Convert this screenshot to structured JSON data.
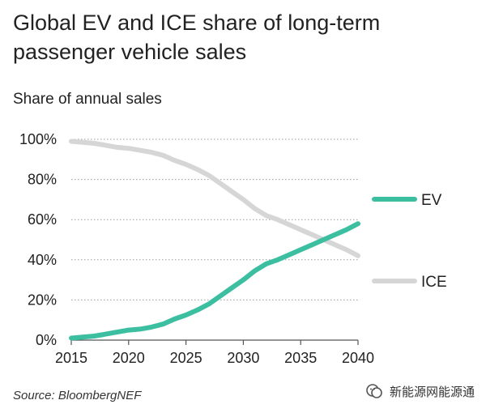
{
  "chart_data": {
    "type": "line",
    "title": "Global EV and ICE share of long-term passenger vehicle sales",
    "subtitle": "Share of annual sales",
    "xlabel": "",
    "ylabel": "Share of annual sales",
    "xlim": [
      2015,
      2040
    ],
    "ylim": [
      0,
      100
    ],
    "x_ticks": [
      "2015",
      "2020",
      "2025",
      "2030",
      "2035",
      "2040"
    ],
    "y_ticks": [
      "0%",
      "20%",
      "40%",
      "60%",
      "80%",
      "100%"
    ],
    "grid": true,
    "legend_position": "right",
    "series": [
      {
        "name": "EV",
        "color": "#3cbfa0",
        "x": [
          2015,
          2016,
          2017,
          2018,
          2019,
          2020,
          2021,
          2022,
          2023,
          2024,
          2025,
          2026,
          2027,
          2028,
          2029,
          2030,
          2031,
          2032,
          2033,
          2034,
          2035,
          2036,
          2037,
          2038,
          2039,
          2040
        ],
        "values": [
          1,
          1.5,
          2,
          3,
          4,
          5,
          5.5,
          6.5,
          8,
          10.5,
          12.5,
          15,
          18,
          22,
          26,
          30,
          34.5,
          38,
          40,
          42.5,
          45,
          47.5,
          50,
          52.5,
          55,
          58
        ]
      },
      {
        "name": "ICE",
        "color": "#d6d6d6",
        "x": [
          2015,
          2016,
          2017,
          2018,
          2019,
          2020,
          2021,
          2022,
          2023,
          2024,
          2025,
          2026,
          2027,
          2028,
          2029,
          2030,
          2031,
          2032,
          2033,
          2034,
          2035,
          2036,
          2037,
          2038,
          2039,
          2040
        ],
        "values": [
          99,
          98.5,
          98,
          97,
          96,
          95.5,
          94.5,
          93.5,
          92,
          89.5,
          87.5,
          85,
          82,
          78,
          74,
          70,
          65.5,
          62,
          60,
          57.5,
          55,
          52.5,
          50,
          47.5,
          45,
          42
        ]
      }
    ]
  },
  "source": "Source: BloombergNEF",
  "watermark": "新能源网能源通",
  "watermark_icon": "wechat-icon"
}
